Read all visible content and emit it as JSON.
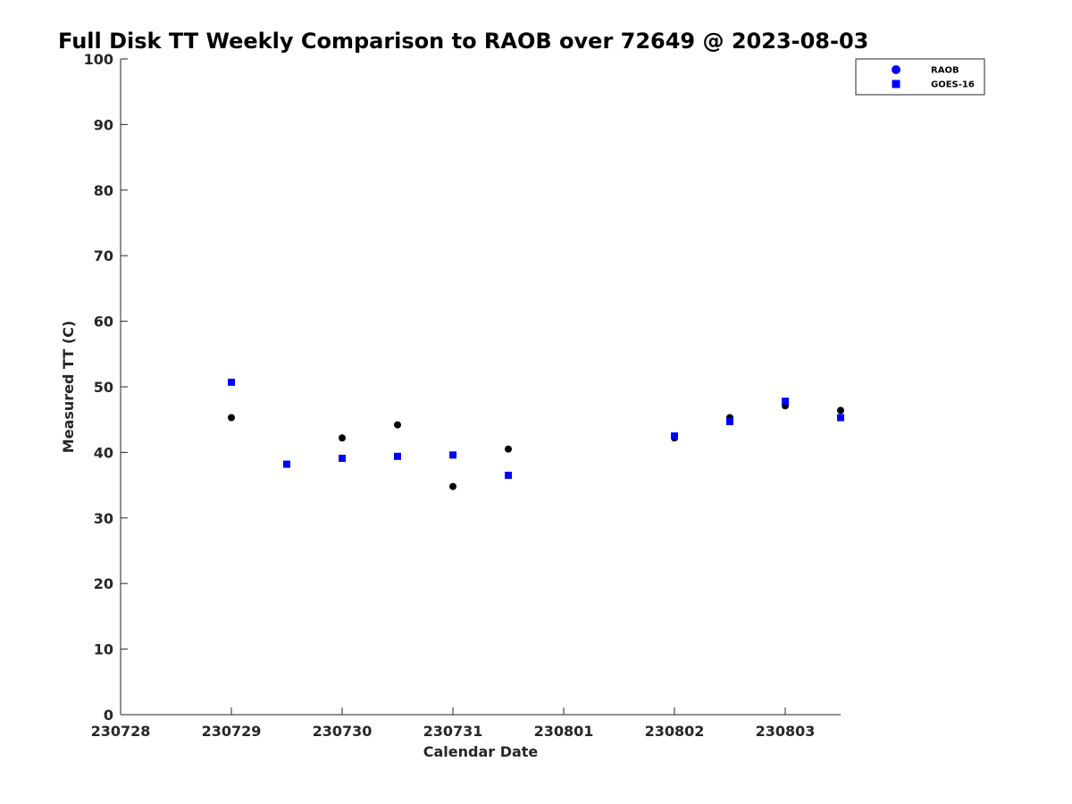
{
  "chart_data": {
    "type": "scatter",
    "title": "Full Disk TT Weekly Comparison to RAOB over 72649 @ 2023-08-03",
    "xlabel": "Calendar Date",
    "ylabel": "Measured TT (C)",
    "x_ticks": [
      "230728",
      "230729",
      "230730",
      "230731",
      "230801",
      "230802",
      "230803"
    ],
    "y_ticks": [
      "0",
      "10",
      "20",
      "30",
      "40",
      "50",
      "60",
      "70",
      "80",
      "90",
      "100"
    ],
    "xlim": [
      "2023-07-28",
      "2023-08-03 12:00"
    ],
    "ylim": [
      0,
      100
    ],
    "grid": false,
    "legend_position": "top-right",
    "series": [
      {
        "name": "RAOB",
        "marker": "circle",
        "color": "#000000",
        "legend_color": "#0000ff",
        "points": [
          {
            "x": "2023-07-29 00:00",
            "y": 45.3
          },
          {
            "x": "2023-07-29 12:00",
            "y": 38.2
          },
          {
            "x": "2023-07-30 00:00",
            "y": 42.2
          },
          {
            "x": "2023-07-30 12:00",
            "y": 44.2
          },
          {
            "x": "2023-07-31 00:00",
            "y": 34.8
          },
          {
            "x": "2023-07-31 12:00",
            "y": 40.5
          },
          {
            "x": "2023-08-02 00:00",
            "y": 42.2
          },
          {
            "x": "2023-08-02 12:00",
            "y": 45.3
          },
          {
            "x": "2023-08-03 00:00",
            "y": 47.1
          },
          {
            "x": "2023-08-03 12:00",
            "y": 46.4
          }
        ]
      },
      {
        "name": "GOES-16",
        "marker": "square",
        "color": "#0000ff",
        "points": [
          {
            "x": "2023-07-29 00:00",
            "y": 50.7
          },
          {
            "x": "2023-07-29 12:00",
            "y": 38.2
          },
          {
            "x": "2023-07-30 00:00",
            "y": 39.1
          },
          {
            "x": "2023-07-30 12:00",
            "y": 39.4
          },
          {
            "x": "2023-07-31 00:00",
            "y": 39.6
          },
          {
            "x": "2023-07-31 12:00",
            "y": 36.5
          },
          {
            "x": "2023-08-02 00:00",
            "y": 42.5
          },
          {
            "x": "2023-08-02 12:00",
            "y": 44.7
          },
          {
            "x": "2023-08-03 00:00",
            "y": 47.8
          },
          {
            "x": "2023-08-03 12:00",
            "y": 45.3
          }
        ]
      }
    ]
  }
}
